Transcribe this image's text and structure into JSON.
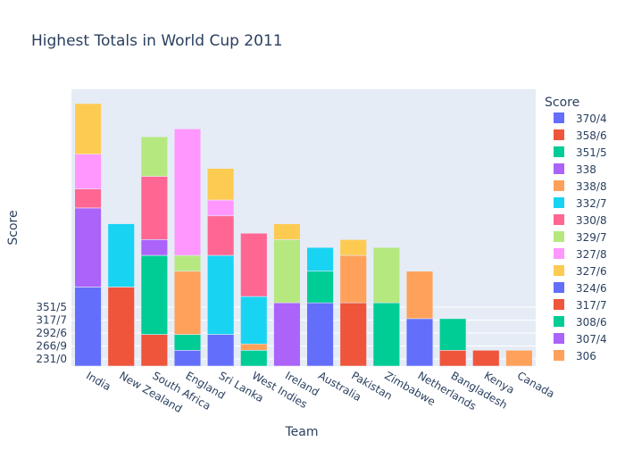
{
  "chart_data": {
    "type": "bar",
    "stacked": true,
    "title": "Highest Totals in World Cup 2011",
    "xlabel": "Team",
    "ylabel": "Score",
    "legend_title": "Score",
    "legend_position": "right",
    "grid": true,
    "categories": [
      "India",
      "New Zealand",
      "South Africa",
      "England",
      "Sri Lanka",
      "West Indies",
      "Ireland",
      "Australia",
      "Pakistan",
      "Zimbabwe",
      "Netherlands",
      "Bangladesh",
      "Kenya",
      "Canada"
    ],
    "y_tick_labels": [
      "231/0",
      "266/9",
      "292/6",
      "317/7",
      "351/5"
    ],
    "series": [
      {
        "name": "370/4",
        "color": "#636efa",
        "values": [
          5,
          0,
          0,
          1,
          2,
          0,
          0,
          4,
          0,
          0,
          3,
          0,
          0,
          0
        ]
      },
      {
        "name": "358/6",
        "color": "#ef553b",
        "values": [
          0,
          5,
          2,
          0,
          0,
          0,
          0,
          0,
          4,
          0,
          0,
          1,
          1,
          0
        ]
      },
      {
        "name": "351/5",
        "color": "#00cc96",
        "values": [
          0,
          0,
          5,
          1,
          0,
          1,
          0,
          2,
          0,
          4,
          0,
          2,
          0,
          0
        ]
      },
      {
        "name": "338",
        "color": "#ab63fa",
        "values": [
          5,
          0,
          1,
          0,
          0,
          0,
          4,
          0,
          0,
          0,
          0,
          0,
          0,
          0
        ]
      },
      {
        "name": "338/8",
        "color": "#ffa15a",
        "values": [
          0,
          0,
          0,
          4,
          0,
          0.4,
          0,
          0,
          3,
          0,
          3,
          0,
          0,
          1
        ]
      },
      {
        "name": "332/7",
        "color": "#19d3f3",
        "values": [
          0,
          4,
          0,
          0,
          5,
          3,
          0,
          1.5,
          0,
          0,
          0,
          0,
          0,
          0
        ]
      },
      {
        "name": "330/8",
        "color": "#ff6692",
        "values": [
          1.2,
          0,
          4,
          0,
          2.5,
          4,
          0,
          0,
          0,
          0,
          0,
          0,
          0,
          0
        ]
      },
      {
        "name": "329/7",
        "color": "#b6e880",
        "values": [
          0,
          0,
          2.5,
          1,
          0,
          0,
          4,
          0,
          0,
          3.5,
          0,
          0,
          0,
          0
        ]
      },
      {
        "name": "327/8",
        "color": "#ff97ff",
        "values": [
          2.2,
          0,
          0,
          8,
          1,
          0,
          0,
          0,
          0,
          0,
          0,
          0,
          0,
          0
        ]
      },
      {
        "name": "327/6",
        "color": "#fecb52",
        "values": [
          3.2,
          0,
          0,
          0,
          2,
          0,
          1,
          0,
          1,
          0,
          0,
          0,
          0,
          0
        ]
      }
    ]
  }
}
